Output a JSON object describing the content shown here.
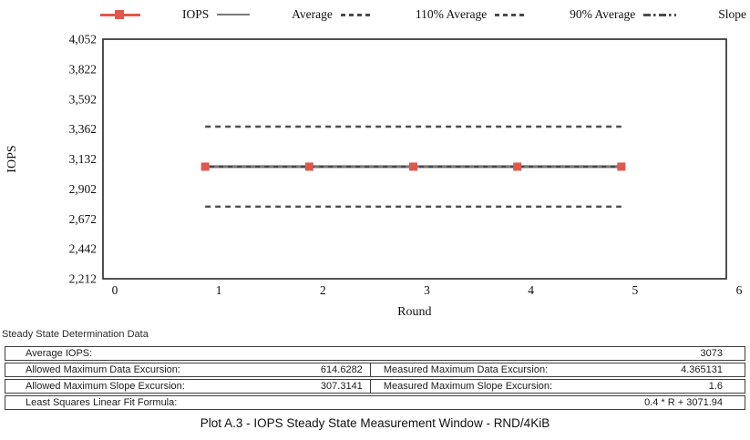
{
  "legend": {
    "items": [
      {
        "label": "IOPS",
        "line_style": "solid"
      },
      {
        "label": "Average",
        "line_style": "dashed"
      },
      {
        "label": "110% Average",
        "line_style": "dashed"
      },
      {
        "label": "90% Average",
        "line_style": "dashdot"
      },
      {
        "label": "Slope",
        "line_style": "none"
      }
    ]
  },
  "chart_data": {
    "type": "line",
    "title": "",
    "xlabel": "Round",
    "ylabel": "IOPS",
    "xlim": [
      0,
      6
    ],
    "ylim": [
      2212,
      4052
    ],
    "x_ticks": [
      0,
      1,
      2,
      3,
      4,
      5,
      6
    ],
    "y_ticks": [
      4052,
      3822,
      3592,
      3362,
      3132,
      2902,
      2672,
      2442,
      2212
    ],
    "y_tick_labels": [
      "4,052",
      "3,822",
      "3,592",
      "3,362",
      "3,132",
      "2,902",
      "2,672",
      "2,442",
      "2,212"
    ],
    "grid": false,
    "legend_position": "top",
    "x": [
      1,
      2,
      3,
      4,
      5
    ],
    "series": [
      {
        "name": "IOPS",
        "kind": "data",
        "style": "solid",
        "marker": "square",
        "values": [
          3073,
          3073,
          3073,
          3073,
          3073
        ]
      },
      {
        "name": "Average",
        "kind": "hline",
        "style": "dashed",
        "value": 3073
      },
      {
        "name": "110% Average",
        "kind": "hline",
        "style": "dashed",
        "value": 3380.3
      },
      {
        "name": "90% Average",
        "kind": "hline",
        "style": "dashdot",
        "value": 2765.7
      },
      {
        "name": "Slope",
        "kind": "fit",
        "style": "dashdot",
        "slope": 0.4,
        "intercept": 3071.94
      }
    ]
  },
  "table": {
    "title": "Steady State Determination Data",
    "row1": {
      "label": "Average IOPS:",
      "value": "3073"
    },
    "row2": {
      "l_label": "Allowed Maximum Data Excursion:",
      "l_value": "614.6282",
      "r_label": "Measured Maximum Data Excursion:",
      "r_value": "4.365131"
    },
    "row3": {
      "l_label": "Allowed Maximum Slope Excursion:",
      "l_value": "307.3141",
      "r_label": "Measured Maximum Slope Excursion:",
      "r_value": "1.6"
    },
    "row4": {
      "label": "Least Squares Linear Fit Formula:",
      "value": "0.4 * R + 3071.94"
    }
  },
  "caption": "Plot A.3 - IOPS Steady State Measurement Window - RND/4KiB",
  "colors": {
    "accent_red": "#e2574b",
    "iops_line": "#474747",
    "average_overlay": "#7d7d7d",
    "dash_line": "#4f4f4f",
    "slope_line": "#555555",
    "plot_border": "#3e3e3e"
  }
}
